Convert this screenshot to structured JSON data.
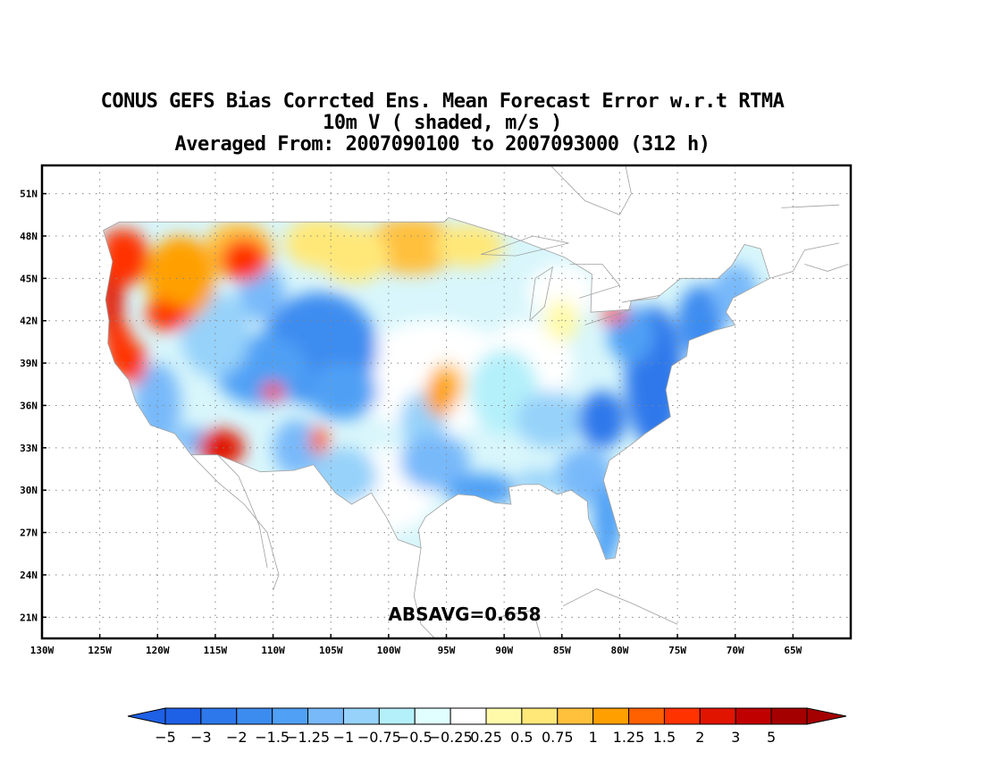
{
  "title": {
    "line1": "CONUS GEFS Bias Corrcted Ens. Mean Forecast Error w.r.t RTMA",
    "line2": "10m V ( shaded, m/s )",
    "line3": "Averaged From: 2007090100 to 2007093000 (312 h)"
  },
  "map": {
    "lon_range": [
      -130,
      -60
    ],
    "lat_range": [
      19.5,
      53
    ],
    "lon_ticks": [
      {
        "value": -130,
        "label": "130W"
      },
      {
        "value": -125,
        "label": "125W"
      },
      {
        "value": -120,
        "label": "120W"
      },
      {
        "value": -115,
        "label": "115W"
      },
      {
        "value": -110,
        "label": "110W"
      },
      {
        "value": -105,
        "label": "105W"
      },
      {
        "value": -100,
        "label": "100W"
      },
      {
        "value": -95,
        "label": "95W"
      },
      {
        "value": -90,
        "label": "90W"
      },
      {
        "value": -85,
        "label": "85W"
      },
      {
        "value": -80,
        "label": "80W"
      },
      {
        "value": -75,
        "label": "75W"
      },
      {
        "value": -70,
        "label": "70W"
      },
      {
        "value": -65,
        "label": "65W"
      }
    ],
    "lat_ticks": [
      {
        "value": 21,
        "label": "21N"
      },
      {
        "value": 24,
        "label": "24N"
      },
      {
        "value": 27,
        "label": "27N"
      },
      {
        "value": 30,
        "label": "30N"
      },
      {
        "value": 33,
        "label": "33N"
      },
      {
        "value": 36,
        "label": "36N"
      },
      {
        "value": 39,
        "label": "39N"
      },
      {
        "value": 42,
        "label": "42N"
      },
      {
        "value": 45,
        "label": "45N"
      },
      {
        "value": 48,
        "label": "48N"
      },
      {
        "value": 51,
        "label": "51N"
      }
    ],
    "grid": true,
    "stat_text": "ABSAVG=0.658"
  },
  "colorbar": {
    "colors": [
      "#1e60e6",
      "#2d78eb",
      "#3c8cf0",
      "#50a0f5",
      "#78b9fa",
      "#96d2fa",
      "#b4f0fa",
      "#e1ffff",
      "#ffffff",
      "#fffaaa",
      "#ffe878",
      "#ffc03c",
      "#ffa000",
      "#ff6000",
      "#ff3200",
      "#e11400",
      "#c00000",
      "#a50000"
    ],
    "labels": [
      "−5",
      "−3",
      "−2",
      "−1.5",
      "−1.25",
      "−1",
      "−0.75",
      "−0.5",
      "−0.25",
      "0.25",
      "0.5",
      "0.75",
      "1",
      "1.25",
      "1.5",
      "2",
      "3",
      "5"
    ]
  }
}
